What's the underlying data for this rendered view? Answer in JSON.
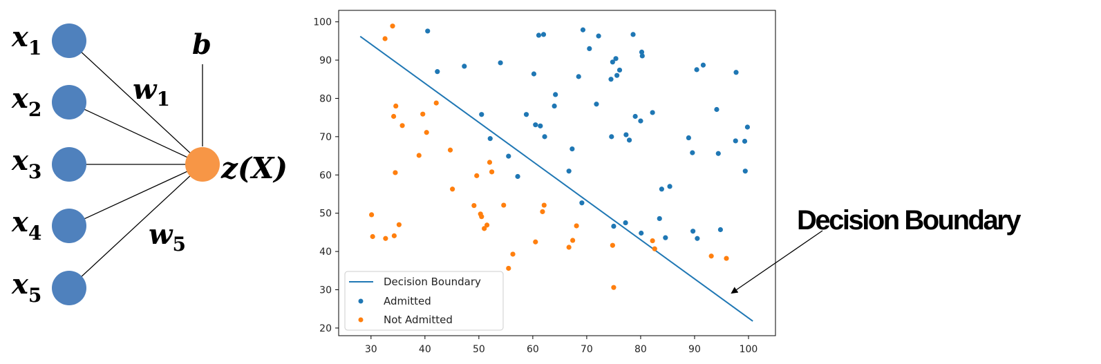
{
  "network": {
    "inputs": [
      {
        "var": "x",
        "sub": "1"
      },
      {
        "var": "x",
        "sub": "2"
      },
      {
        "var": "x",
        "sub": "3"
      },
      {
        "var": "x",
        "sub": "4"
      },
      {
        "var": "x",
        "sub": "5"
      }
    ],
    "weights": [
      {
        "var": "w",
        "sub": "1"
      },
      {
        "var": "w",
        "sub": "5"
      }
    ],
    "bias": "b",
    "output": "z(X)",
    "colors": {
      "input_node": "#4f81bd",
      "output_node": "#f79646"
    }
  },
  "callout": {
    "label": "Decision Boundary"
  },
  "chart_data": {
    "type": "scatter",
    "title": "",
    "xlabel": "",
    "ylabel": "",
    "xlim": [
      24,
      105
    ],
    "ylim": [
      18,
      103
    ],
    "xticks": [
      30,
      40,
      50,
      60,
      70,
      80,
      90,
      100
    ],
    "yticks": [
      20,
      30,
      40,
      50,
      60,
      70,
      80,
      90,
      100
    ],
    "grid": false,
    "legend_position": "lower-left",
    "line": {
      "name": "Decision Boundary",
      "color": "#1f77b4",
      "x": [
        28,
        100.8
      ],
      "y": [
        96.2,
        21.8
      ]
    },
    "series": [
      {
        "name": "Admitted",
        "color": "#1f77b4",
        "points": [
          [
            40.5,
            97.6
          ],
          [
            42.3,
            87.0
          ],
          [
            47.3,
            88.4
          ],
          [
            50.5,
            75.8
          ],
          [
            52.1,
            69.5
          ],
          [
            54.0,
            89.3
          ],
          [
            55.5,
            64.9
          ],
          [
            57.2,
            59.6
          ],
          [
            58.8,
            75.8
          ],
          [
            60.2,
            86.4
          ],
          [
            60.5,
            73.1
          ],
          [
            61.1,
            96.5
          ],
          [
            61.4,
            72.8
          ],
          [
            62.0,
            96.7
          ],
          [
            62.2,
            70.0
          ],
          [
            64.0,
            78.0
          ],
          [
            64.2,
            81.0
          ],
          [
            66.7,
            61.0
          ],
          [
            67.3,
            66.8
          ],
          [
            68.5,
            85.7
          ],
          [
            69.1,
            52.7
          ],
          [
            69.3,
            97.9
          ],
          [
            70.5,
            93.0
          ],
          [
            71.8,
            78.5
          ],
          [
            72.2,
            96.3
          ],
          [
            74.5,
            85.0
          ],
          [
            74.6,
            70.0
          ],
          [
            74.8,
            89.5
          ],
          [
            75.0,
            46.6
          ],
          [
            75.4,
            90.4
          ],
          [
            75.6,
            86.0
          ],
          [
            76.1,
            87.4
          ],
          [
            77.2,
            47.5
          ],
          [
            77.3,
            70.5
          ],
          [
            77.9,
            69.1
          ],
          [
            78.6,
            96.7
          ],
          [
            79.0,
            75.3
          ],
          [
            80.0,
            74.1
          ],
          [
            80.2,
            92.1
          ],
          [
            80.3,
            91.1
          ],
          [
            80.1,
            44.8
          ],
          [
            82.2,
            76.3
          ],
          [
            83.5,
            48.6
          ],
          [
            83.9,
            56.3
          ],
          [
            84.6,
            43.6
          ],
          [
            85.4,
            57.0
          ],
          [
            88.9,
            69.7
          ],
          [
            89.6,
            65.8
          ],
          [
            89.7,
            45.3
          ],
          [
            90.4,
            87.5
          ],
          [
            90.5,
            43.4
          ],
          [
            91.6,
            88.7
          ],
          [
            94.1,
            77.1
          ],
          [
            94.4,
            65.6
          ],
          [
            94.8,
            45.7
          ],
          [
            97.7,
            86.8
          ],
          [
            97.6,
            68.9
          ],
          [
            99.3,
            68.8
          ],
          [
            99.4,
            61.0
          ],
          [
            99.8,
            72.5
          ]
        ]
      },
      {
        "name": "Not Admitted",
        "color": "#ff7f0e",
        "points": [
          [
            30.1,
            49.6
          ],
          [
            30.3,
            43.9
          ],
          [
            32.6,
            95.6
          ],
          [
            32.7,
            43.4
          ],
          [
            34.0,
            98.9
          ],
          [
            34.2,
            75.3
          ],
          [
            34.3,
            44.1
          ],
          [
            34.5,
            60.6
          ],
          [
            34.6,
            78.0
          ],
          [
            35.2,
            47.0
          ],
          [
            35.8,
            72.9
          ],
          [
            38.9,
            65.1
          ],
          [
            39.6,
            75.9
          ],
          [
            40.3,
            71.1
          ],
          [
            42.1,
            78.8
          ],
          [
            44.7,
            66.5
          ],
          [
            45.1,
            56.3
          ],
          [
            49.1,
            52.0
          ],
          [
            49.6,
            59.8
          ],
          [
            50.3,
            49.8
          ],
          [
            50.5,
            49.1
          ],
          [
            51.0,
            46.0
          ],
          [
            51.5,
            46.9
          ],
          [
            52.0,
            63.3
          ],
          [
            52.4,
            60.8
          ],
          [
            54.6,
            52.1
          ],
          [
            55.5,
            35.6
          ],
          [
            56.3,
            39.3
          ],
          [
            60.5,
            42.5
          ],
          [
            61.8,
            50.4
          ],
          [
            62.1,
            52.1
          ],
          [
            66.7,
            41.1
          ],
          [
            67.4,
            42.9
          ],
          [
            68.1,
            46.7
          ],
          [
            74.8,
            41.6
          ],
          [
            75.0,
            30.6
          ],
          [
            82.2,
            42.8
          ],
          [
            82.6,
            40.7
          ],
          [
            93.1,
            38.8
          ],
          [
            95.9,
            38.2
          ]
        ]
      }
    ]
  }
}
